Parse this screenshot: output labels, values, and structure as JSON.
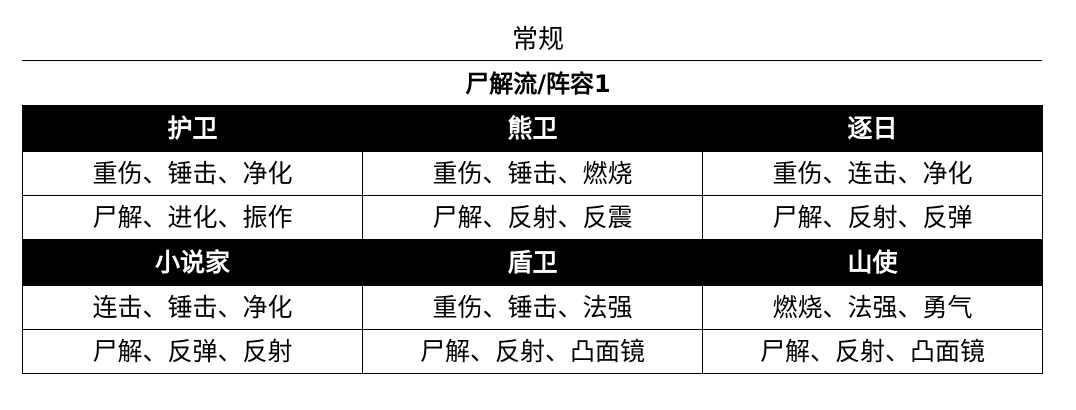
{
  "title": "常规",
  "subtitle": "尸解流/阵容1",
  "groups": [
    {
      "headers": [
        "护卫",
        "熊卫",
        "逐日"
      ],
      "rows": [
        [
          "重伤、锤击、净化",
          "重伤、锤击、燃烧",
          "重伤、连击、净化"
        ],
        [
          "尸解、进化、振作",
          "尸解、反射、反震",
          "尸解、反射、反弹"
        ]
      ]
    },
    {
      "headers": [
        "小说家",
        "盾卫",
        "山使"
      ],
      "rows": [
        [
          "连击、锤击、净化",
          "重伤、锤击、法强",
          "燃烧、法强、勇气"
        ],
        [
          "尸解、反弹、反射",
          "尸解、反射、凸面镜",
          "尸解、反射、凸面镜"
        ]
      ]
    }
  ]
}
